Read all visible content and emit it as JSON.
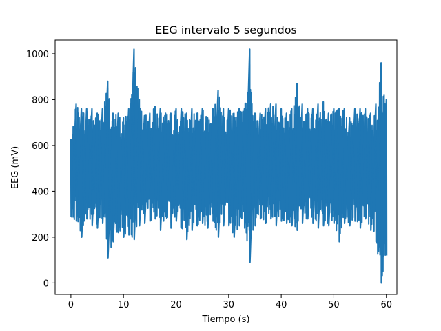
{
  "chart_data": {
    "type": "line",
    "title": "EEG intervalo 5 segundos",
    "xlabel": "Tiempo (s)",
    "ylabel": "EEG (mV)",
    "xlim": [
      -3,
      62
    ],
    "ylim": [
      -50,
      1060
    ],
    "x_ticks": [
      0,
      10,
      20,
      30,
      40,
      50,
      60
    ],
    "y_ticks": [
      0,
      200,
      400,
      600,
      800,
      1000
    ],
    "grid": false,
    "legend": "none",
    "series": [
      {
        "color": "#1f77b4",
        "x": [
          0,
          1,
          2,
          3,
          4,
          5,
          6,
          7,
          8,
          9,
          10,
          11,
          12,
          13,
          14,
          15,
          16,
          17,
          18,
          19,
          20,
          21,
          22,
          23,
          24,
          25,
          26,
          27,
          28,
          29,
          30,
          31,
          32,
          33,
          34,
          35,
          36,
          37,
          38,
          39,
          40,
          41,
          42,
          43,
          44,
          45,
          46,
          47,
          48,
          49,
          50,
          51,
          52,
          53,
          54,
          55,
          56,
          57,
          58,
          59,
          60
        ],
        "min": [
          290,
          270,
          200,
          280,
          250,
          240,
          260,
          110,
          180,
          220,
          200,
          210,
          190,
          250,
          260,
          270,
          280,
          230,
          290,
          240,
          270,
          240,
          190,
          230,
          250,
          260,
          240,
          270,
          200,
          250,
          250,
          200,
          250,
          240,
          90,
          250,
          280,
          260,
          280,
          250,
          270,
          260,
          250,
          230,
          260,
          280,
          260,
          240,
          250,
          250,
          260,
          180,
          260,
          250,
          270,
          240,
          280,
          230,
          180,
          0,
          120
        ],
        "max": [
          630,
          780,
          760,
          760,
          760,
          740,
          760,
          880,
          740,
          740,
          720,
          760,
          1020,
          800,
          730,
          740,
          770,
          760,
          740,
          740,
          760,
          760,
          740,
          760,
          740,
          760,
          720,
          760,
          840,
          760,
          760,
          740,
          760,
          760,
          1020,
          740,
          740,
          760,
          780,
          780,
          760,
          740,
          760,
          870,
          780,
          760,
          760,
          780,
          790,
          740,
          760,
          760,
          760,
          720,
          760,
          760,
          760,
          740,
          780,
          960,
          800
        ]
      }
    ]
  }
}
